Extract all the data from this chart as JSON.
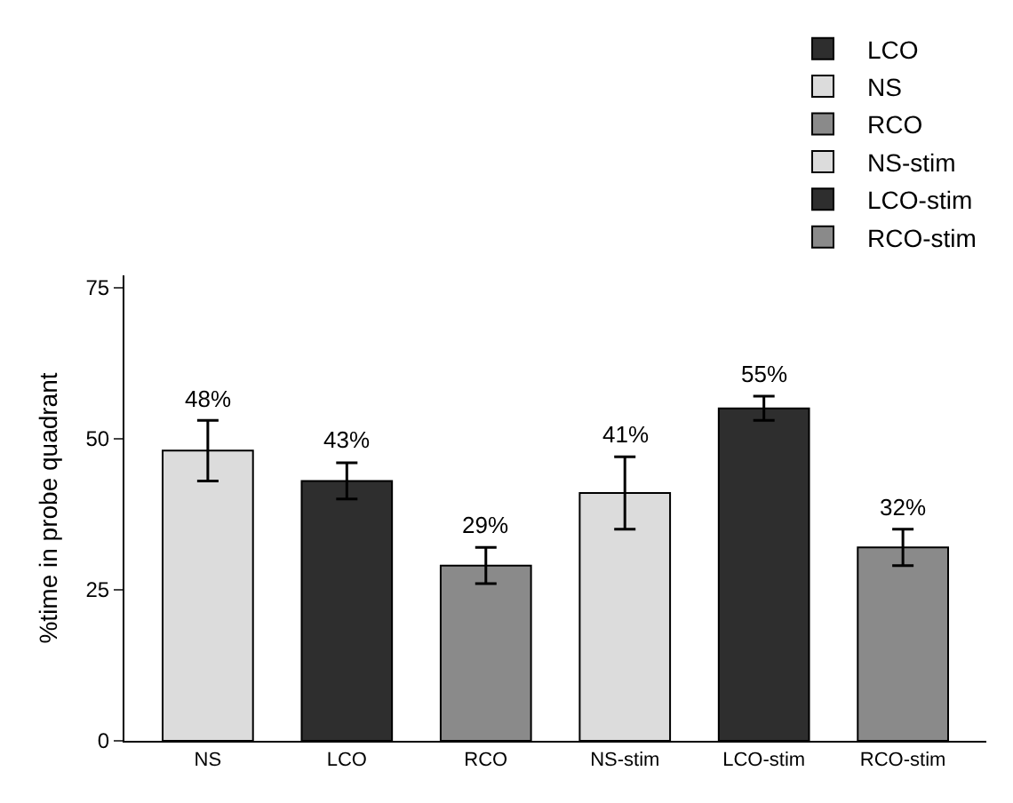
{
  "chart_data": {
    "type": "bar",
    "ylabel": "%time in probe quadrant",
    "categories": [
      "NS",
      "LCO",
      "RCO",
      "NS-stim",
      "LCO-stim",
      "RCO-stim"
    ],
    "series": [
      {
        "name": "LCO",
        "color": "#2e2e2e",
        "values": [
          null,
          43,
          null,
          null,
          null,
          null
        ],
        "errors": [
          null,
          3,
          null,
          null,
          null,
          null
        ],
        "value_labels": [
          null,
          "43%",
          null,
          null,
          null,
          null
        ]
      },
      {
        "name": "NS",
        "color": "#dcdcdc",
        "values": [
          48,
          null,
          null,
          null,
          null,
          null
        ],
        "errors": [
          5,
          null,
          null,
          null,
          null,
          null
        ],
        "value_labels": [
          "48%",
          null,
          null,
          null,
          null,
          null
        ]
      },
      {
        "name": "RCO",
        "color": "#8a8a8a",
        "values": [
          null,
          null,
          29,
          null,
          null,
          null
        ],
        "errors": [
          null,
          null,
          3,
          null,
          null,
          null
        ],
        "value_labels": [
          null,
          null,
          "29%",
          null,
          null,
          null
        ]
      },
      {
        "name": "NS-stim",
        "color": "#dcdcdc",
        "values": [
          null,
          null,
          null,
          41,
          null,
          null
        ],
        "errors": [
          null,
          null,
          null,
          6,
          null,
          null
        ],
        "value_labels": [
          null,
          null,
          null,
          "41%",
          null,
          null
        ]
      },
      {
        "name": "LCO-stim",
        "color": "#2e2e2e",
        "values": [
          null,
          null,
          null,
          null,
          55,
          null
        ],
        "errors": [
          null,
          null,
          null,
          null,
          2,
          null
        ],
        "value_labels": [
          null,
          null,
          null,
          null,
          "55%",
          null
        ]
      },
      {
        "name": "RCO-stim",
        "color": "#8a8a8a",
        "values": [
          null,
          null,
          null,
          null,
          null,
          32
        ],
        "errors": [
          null,
          null,
          null,
          null,
          null,
          3
        ],
        "value_labels": [
          null,
          null,
          null,
          null,
          null,
          "32%"
        ]
      }
    ],
    "ylim": [
      0,
      77
    ],
    "yticks": [
      0,
      25,
      50,
      75
    ],
    "grid": false,
    "legend": "top right"
  }
}
